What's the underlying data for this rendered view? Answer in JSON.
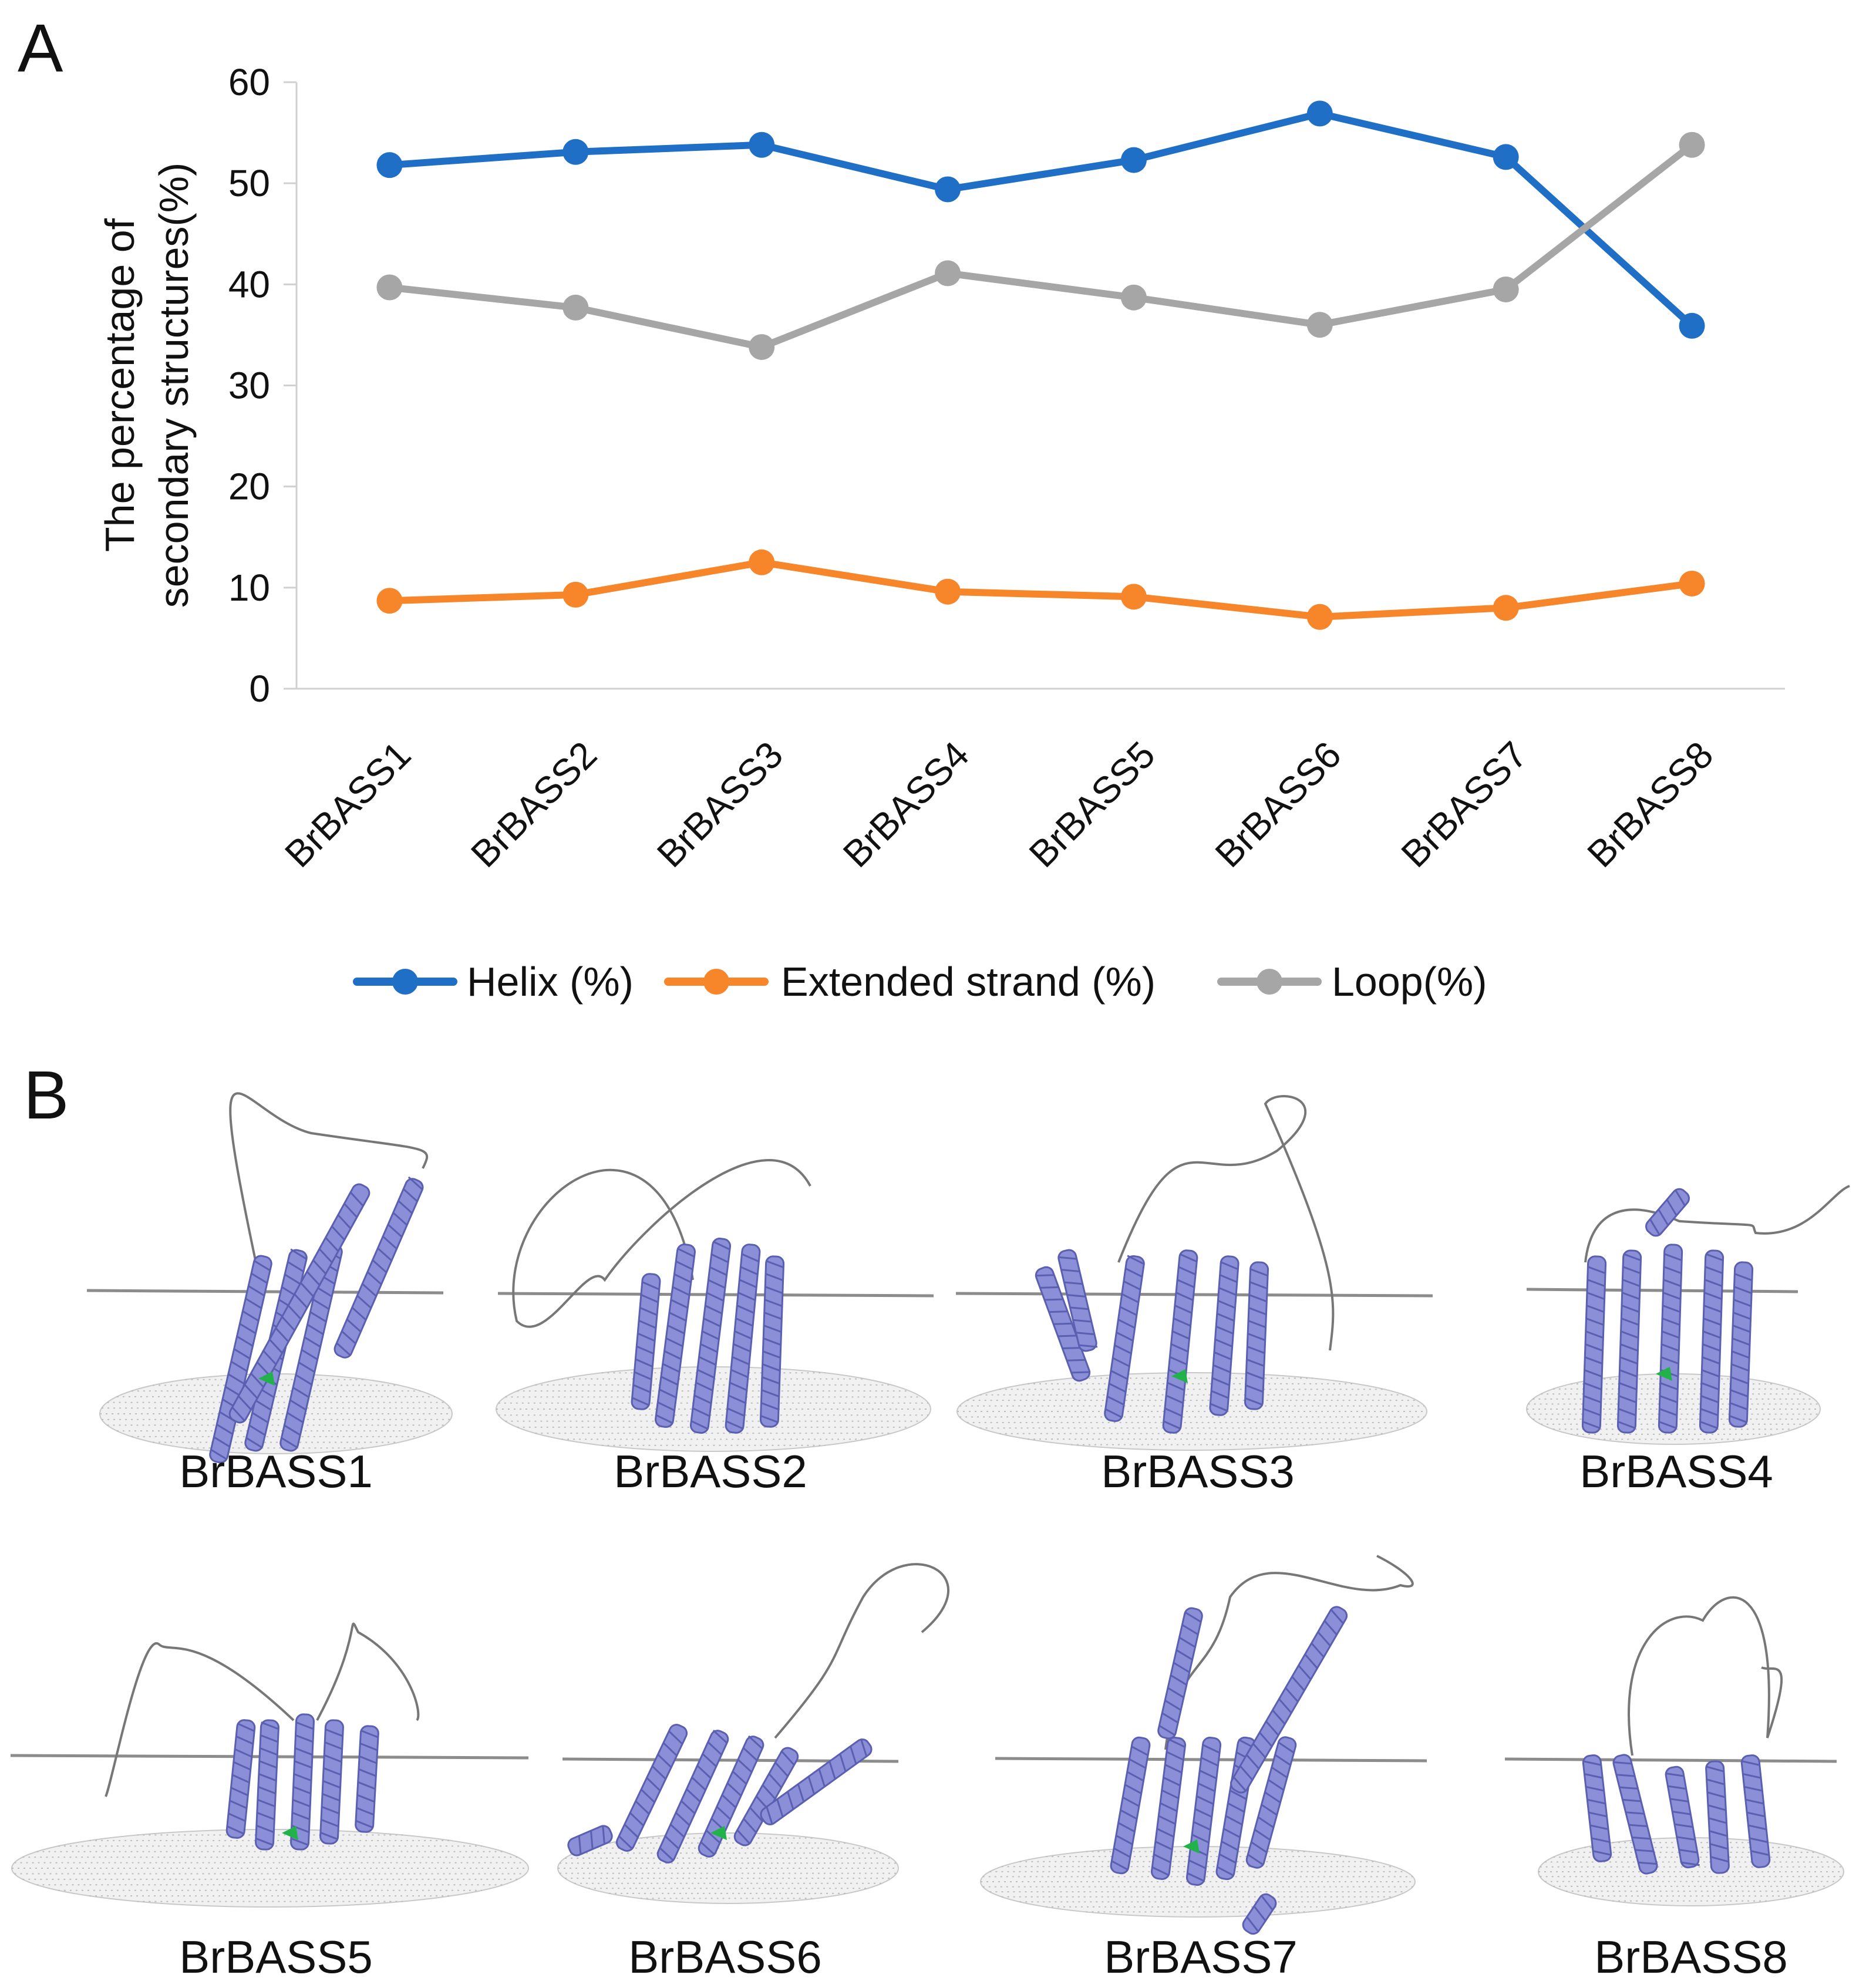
{
  "panel_a": {
    "letter": "A"
  },
  "panel_b": {
    "letter": "B"
  },
  "chart_data": {
    "type": "line",
    "title": "",
    "xlabel": "",
    "ylabel_line1": "The percentage of",
    "ylabel_line2": "secondary structures(%)",
    "ylim": [
      0,
      60
    ],
    "yticks": [
      0,
      10,
      20,
      30,
      40,
      50,
      60
    ],
    "grid": false,
    "legend": "bottom",
    "categories": [
      "BrBASS1",
      "BrBASS2",
      "BrBASS3",
      "BrBASS4",
      "BrBASS5",
      "BrBASS6",
      "BrBASS7",
      "BrBASS8"
    ],
    "series": [
      {
        "name": "Helix (%)",
        "color": "#1f6fc6",
        "values": [
          51.8,
          53.1,
          53.8,
          49.4,
          52.3,
          56.9,
          52.6,
          35.9
        ]
      },
      {
        "name": "Extended strand (%)",
        "color": "#f7862a",
        "values": [
          8.7,
          9.3,
          12.5,
          9.6,
          9.1,
          7.1,
          8.0,
          10.4
        ]
      },
      {
        "name": "Loop(%)",
        "color": "#a6a6a6",
        "values": [
          39.7,
          37.7,
          33.8,
          41.1,
          38.7,
          36.0,
          39.5,
          53.8
        ]
      }
    ]
  },
  "structures": {
    "labels": [
      "BrBASS1",
      "BrBASS2",
      "BrBASS3",
      "BrBASS4",
      "BrBASS5",
      "BrBASS6",
      "BrBASS7",
      "BrBASS8"
    ],
    "helix_color": "#8a8fd8",
    "strand_color": "#21b24a",
    "loop_color": "#777777"
  }
}
